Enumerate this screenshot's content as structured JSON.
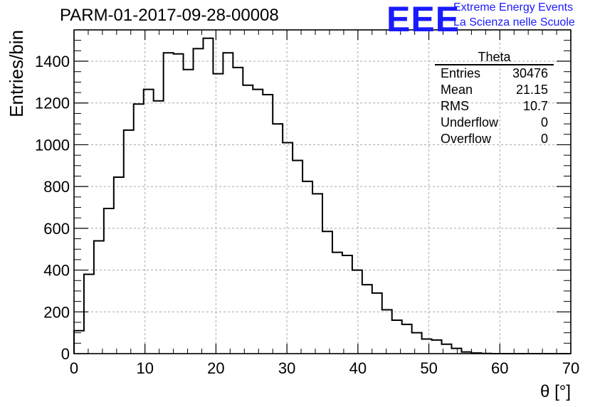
{
  "page_title": "PARM-01-2017-09-28-00008",
  "logo": {
    "mark": "EEE",
    "line1": "Extreme Energy Events",
    "line2": "La Scienza nelle Scuole",
    "color": "#1a1aff"
  },
  "stats_box": {
    "title": "Theta",
    "rows": [
      {
        "label": "Entries",
        "value": "30476"
      },
      {
        "label": "Mean",
        "value": "21.15"
      },
      {
        "label": "RMS",
        "value": "10.7"
      },
      {
        "label": "Underflow",
        "value": "0"
      },
      {
        "label": "Overflow",
        "value": "0"
      }
    ]
  },
  "chart_data": {
    "type": "histogram",
    "title": "PARM-01-2017-09-28-00008",
    "xlabel": "θ [°]",
    "ylabel": "Entries/bin",
    "xlim": [
      0,
      70
    ],
    "ylim": [
      0,
      1550
    ],
    "grid": true,
    "bin_edges": [
      0,
      1.4,
      2.8,
      4.2,
      5.6,
      7.0,
      8.4,
      9.8,
      11.2,
      12.6,
      14.0,
      15.4,
      16.8,
      18.2,
      19.6,
      21.0,
      22.4,
      23.8,
      25.2,
      26.6,
      28.0,
      29.4,
      30.8,
      32.2,
      33.6,
      35.0,
      36.4,
      37.8,
      39.2,
      40.6,
      42.0,
      43.4,
      44.8,
      46.2,
      47.6,
      49.0,
      50.4,
      51.8,
      53.2,
      54.6,
      56.0,
      57.4,
      58.8,
      60.2,
      61.6,
      63.0,
      64.4,
      65.8,
      67.2,
      68.6,
      70.0
    ],
    "values": [
      110,
      380,
      540,
      695,
      845,
      1070,
      1195,
      1265,
      1210,
      1440,
      1435,
      1360,
      1460,
      1510,
      1340,
      1440,
      1370,
      1285,
      1265,
      1240,
      1100,
      1010,
      925,
      825,
      765,
      585,
      485,
      470,
      400,
      330,
      290,
      210,
      160,
      140,
      100,
      70,
      65,
      45,
      25,
      8,
      3,
      1,
      0,
      0,
      0,
      0,
      0,
      0,
      0,
      0
    ],
    "x_ticks": [
      "0",
      "10",
      "20",
      "30",
      "40",
      "50",
      "60",
      "70"
    ],
    "y_ticks": [
      "0",
      "200",
      "400",
      "600",
      "800",
      "1000",
      "1200",
      "1400"
    ]
  }
}
